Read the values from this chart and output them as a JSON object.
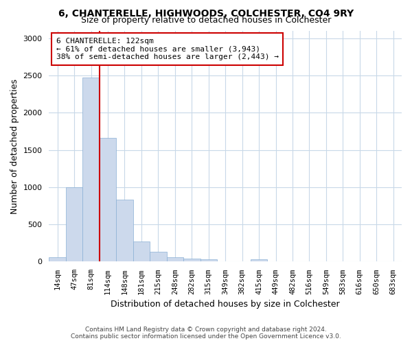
{
  "title_line1": "6, CHANTERELLE, HIGHWOODS, COLCHESTER, CO4 9RY",
  "title_line2": "Size of property relative to detached houses in Colchester",
  "xlabel": "Distribution of detached houses by size in Colchester",
  "ylabel": "Number of detached properties",
  "footer_line1": "Contains HM Land Registry data © Crown copyright and database right 2024.",
  "footer_line2": "Contains public sector information licensed under the Open Government Licence v3.0.",
  "annotation_line1": "6 CHANTERELLE: 122sqm",
  "annotation_line2": "← 61% of detached houses are smaller (3,943)",
  "annotation_line3": "38% of semi-detached houses are larger (2,443) →",
  "bar_color": "#ccd9ec",
  "bar_edge_color": "#8aafd4",
  "marker_line_color": "#cc0000",
  "background_color": "#ffffff",
  "plot_bg_color": "#ffffff",
  "categories": [
    "14sqm",
    "47sqm",
    "81sqm",
    "114sqm",
    "148sqm",
    "181sqm",
    "215sqm",
    "248sqm",
    "282sqm",
    "315sqm",
    "349sqm",
    "382sqm",
    "415sqm",
    "449sqm",
    "482sqm",
    "516sqm",
    "549sqm",
    "583sqm",
    "616sqm",
    "650sqm",
    "683sqm"
  ],
  "values": [
    55,
    1000,
    2470,
    1660,
    830,
    275,
    130,
    55,
    40,
    30,
    0,
    0,
    30,
    0,
    0,
    0,
    0,
    0,
    0,
    0,
    0
  ],
  "marker_index": 3,
  "ylim": [
    0,
    3100
  ],
  "yticks": [
    0,
    500,
    1000,
    1500,
    2000,
    2500,
    3000
  ],
  "figsize": [
    6.0,
    5.0
  ],
  "dpi": 100
}
